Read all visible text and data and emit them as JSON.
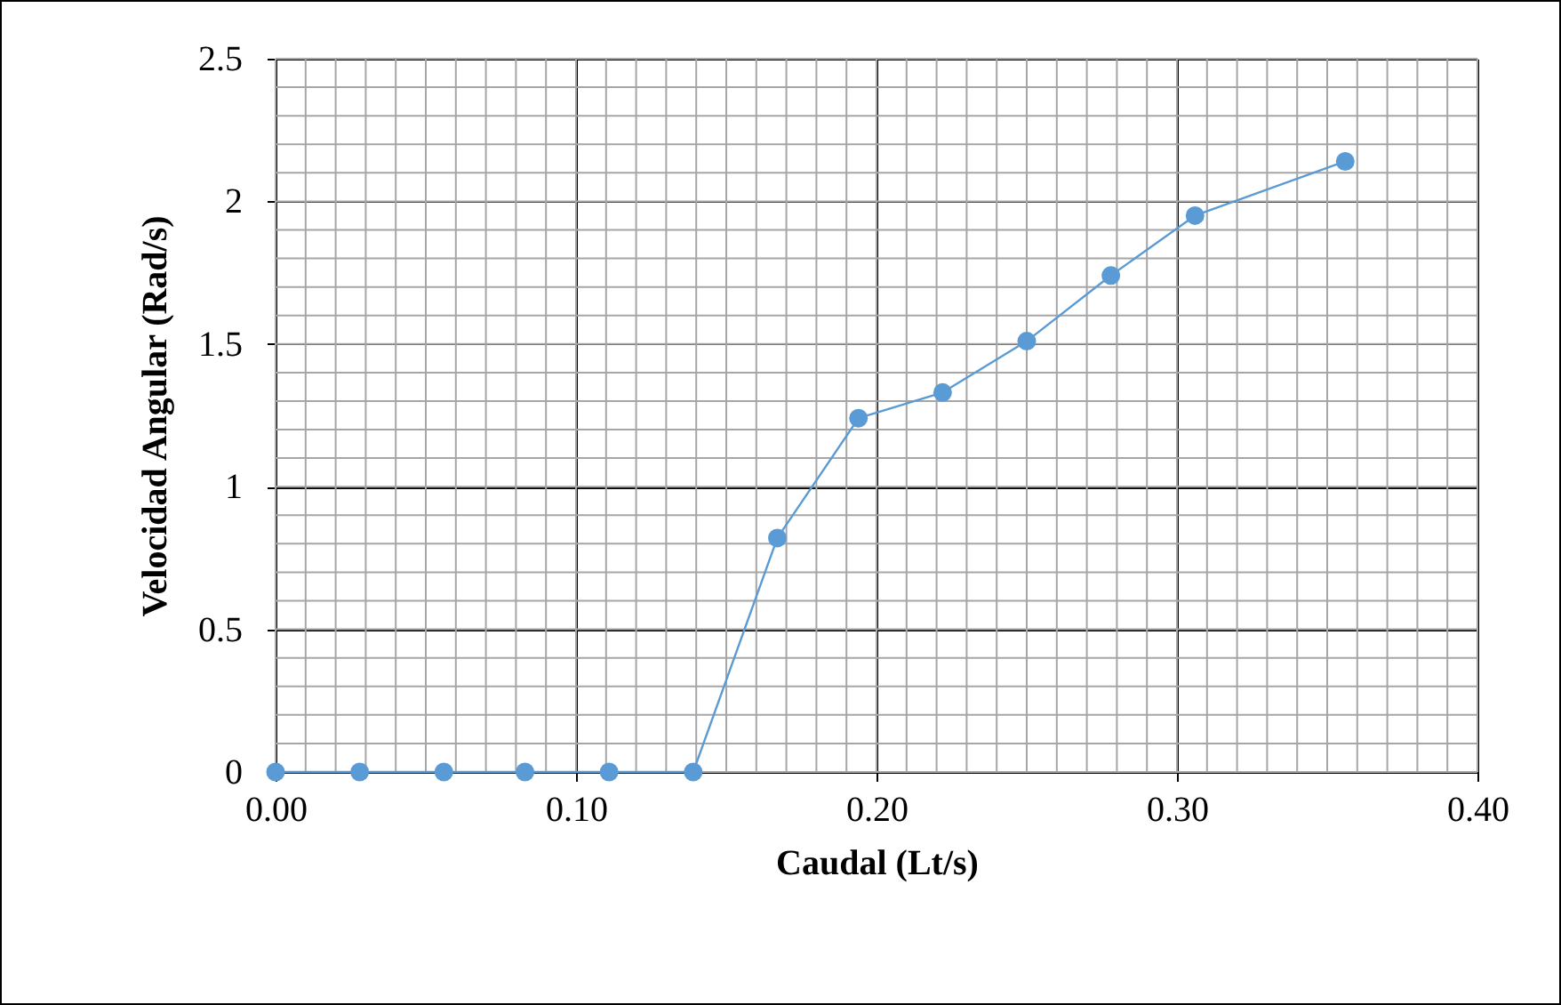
{
  "chart_data": {
    "type": "line",
    "xlabel": "Caudal (Lt/s)",
    "ylabel": "Velocidad Angular (Rad/s)",
    "x": [
      0,
      0.028,
      0.056,
      0.083,
      0.111,
      0.139,
      0.167,
      0.194,
      0.222,
      0.25,
      0.278,
      0.306,
      0.356
    ],
    "series": [
      {
        "color": "#5b9bd5",
        "values": [
          0,
          0,
          0,
          0,
          0,
          0,
          0.82,
          1.24,
          1.33,
          1.51,
          1.74,
          1.95,
          2.14
        ]
      }
    ],
    "xlim": [
      0,
      0.4
    ],
    "ylim": [
      0,
      2.5
    ],
    "xticks": [
      {
        "value": 0,
        "label": "0.00"
      },
      {
        "value": 0.1,
        "label": "0.10"
      },
      {
        "value": 0.2,
        "label": "0.20"
      },
      {
        "value": 0.3,
        "label": "0.30"
      },
      {
        "value": 0.4,
        "label": "0.40"
      }
    ],
    "yticks": [
      0,
      0.5,
      1,
      1.5,
      2,
      2.5
    ],
    "grid": true,
    "marker": "circle",
    "line_style": "solid"
  }
}
